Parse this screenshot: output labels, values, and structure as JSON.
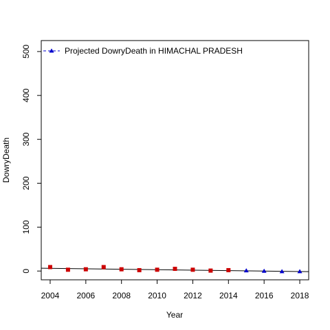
{
  "chart_data": {
    "type": "scatter",
    "title": "",
    "xlabel": "Year",
    "ylabel": "DowryDeath",
    "xlim": [
      2003.5,
      2018.5
    ],
    "ylim": [
      -20,
      525
    ],
    "x_ticks": [
      2004,
      2006,
      2008,
      2010,
      2012,
      2014,
      2016,
      2018
    ],
    "y_ticks": [
      0,
      100,
      200,
      300,
      400,
      500
    ],
    "grid": false,
    "legend": {
      "position": "top-left",
      "entries": [
        "Projected  DowryDeath  in  HIMACHAL PRADESH"
      ]
    },
    "series": [
      {
        "kind": "observed",
        "marker": "square",
        "color": "#cc0000",
        "x": [
          2004,
          2005,
          2006,
          2007,
          2008,
          2009,
          2010,
          2011,
          2012,
          2013,
          2014
        ],
        "y": [
          9,
          3,
          4,
          9,
          4,
          2,
          3,
          5,
          3,
          1,
          2
        ]
      },
      {
        "name": "Projected  DowryDeath  in  HIMACHAL PRADESH",
        "kind": "projected",
        "marker": "triangle",
        "color": "#0000cc",
        "x": [
          2015,
          2016,
          2017,
          2018
        ],
        "y": [
          1,
          0,
          -1,
          -1
        ]
      }
    ],
    "trend_line": {
      "color": "#000000",
      "x": [
        2003.5,
        2018.5
      ],
      "y": [
        6.5,
        -1.5
      ]
    }
  }
}
